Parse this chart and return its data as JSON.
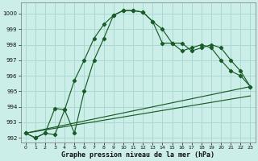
{
  "xlabel": "Graphe pression niveau de la mer (hPa)",
  "bg_color": "#cceee8",
  "grid_color": "#aad8d0",
  "line_color": "#1a5c28",
  "ylim": [
    991.7,
    1000.7
  ],
  "xlim": [
    -0.5,
    23.5
  ],
  "yticks": [
    992,
    993,
    994,
    995,
    996,
    997,
    998,
    999,
    1000
  ],
  "xticks": [
    0,
    1,
    2,
    3,
    4,
    5,
    6,
    7,
    8,
    9,
    10,
    11,
    12,
    13,
    14,
    15,
    16,
    17,
    18,
    19,
    20,
    21,
    22,
    23
  ],
  "series1_x": [
    0,
    1,
    2,
    3,
    4,
    5,
    6,
    7,
    8,
    9,
    10,
    11,
    12,
    13,
    14,
    15,
    16,
    17,
    18,
    19,
    20,
    21,
    22,
    23
  ],
  "series1_y": [
    992.3,
    992.0,
    992.3,
    992.2,
    993.8,
    995.7,
    997.0,
    998.4,
    999.3,
    999.9,
    1000.2,
    1000.2,
    1000.1,
    999.5,
    999.0,
    998.1,
    998.1,
    997.6,
    997.8,
    998.0,
    997.8,
    997.0,
    996.3,
    995.3
  ],
  "series2_x": [
    0,
    1,
    2,
    3,
    4,
    5,
    6,
    7,
    8,
    9,
    10,
    11,
    12,
    13,
    14,
    15,
    16,
    17,
    18,
    19,
    20,
    21,
    22,
    23
  ],
  "series2_y": [
    992.3,
    992.0,
    992.3,
    993.9,
    993.8,
    992.3,
    995.0,
    997.0,
    998.4,
    999.9,
    1000.2,
    1000.2,
    1000.1,
    999.5,
    998.1,
    998.1,
    997.6,
    997.8,
    998.0,
    997.8,
    997.0,
    996.3,
    996.0,
    995.3
  ],
  "line1_x": [
    0,
    23
  ],
  "line1_y": [
    992.3,
    995.3
  ],
  "line2_x": [
    0,
    23
  ],
  "line2_y": [
    992.3,
    994.7
  ]
}
